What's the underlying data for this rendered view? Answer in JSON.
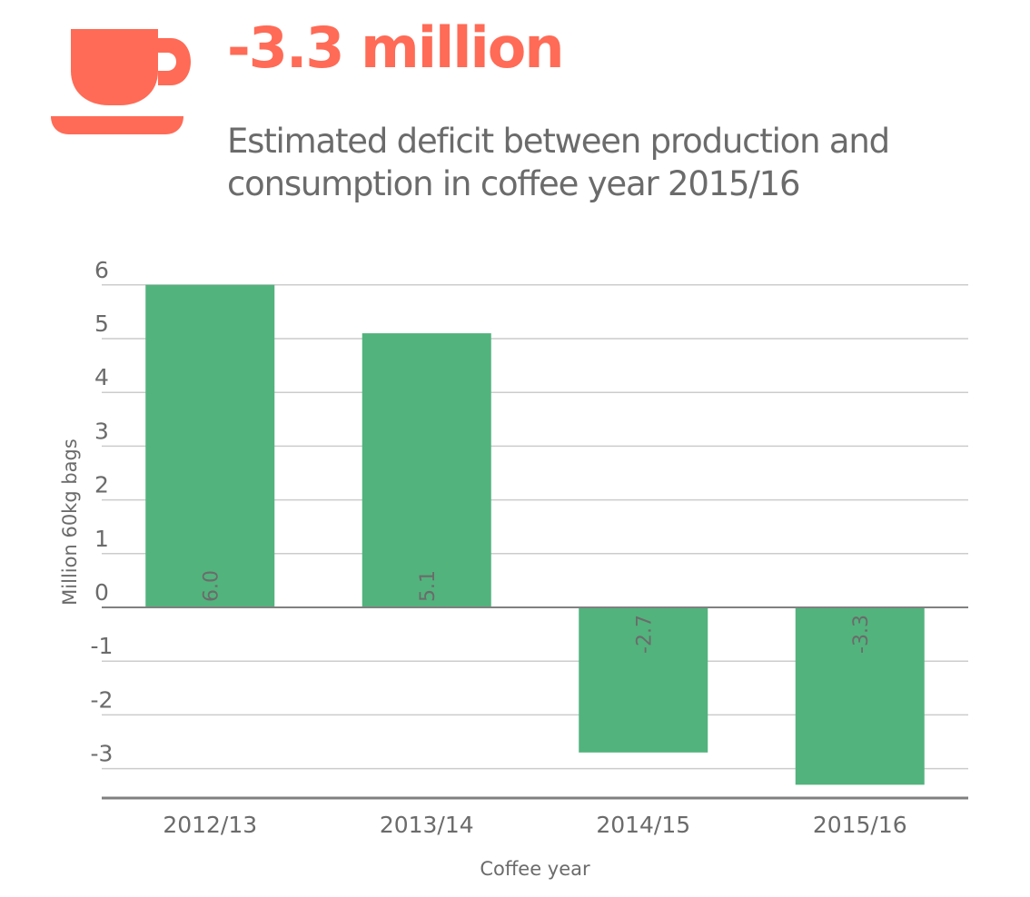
{
  "header": {
    "icon": "coffee-cup-icon",
    "headline": "-3.3 million",
    "subtitle_line1": "Estimated deficit between production and",
    "subtitle_line2": "consumption in coffee year 2015/16"
  },
  "colors": {
    "accent": "#ff6b56",
    "bar": "#52b37d",
    "text": "#6b6b6b",
    "grid": "#cccccc",
    "axis": "#808080"
  },
  "chart_data": {
    "type": "bar",
    "categories": [
      "2012/13",
      "2013/14",
      "2014/15",
      "2015/16"
    ],
    "values": [
      6.0,
      5.1,
      -2.7,
      -3.3
    ],
    "data_labels": [
      "6.0",
      "5.1",
      "-2.7",
      "-3.3"
    ],
    "yticks": [
      6,
      5,
      4,
      3,
      2,
      1,
      0,
      -1,
      -2,
      -3
    ],
    "ytick_labels": [
      "6",
      "5",
      "4",
      "3",
      "2",
      "1",
      "0",
      "-1",
      "-2",
      "-3"
    ],
    "ylim": [
      -3.5,
      6
    ],
    "xlabel": "Coffee year",
    "ylabel": "Million 60kg bags",
    "grid": true,
    "legend": false
  }
}
